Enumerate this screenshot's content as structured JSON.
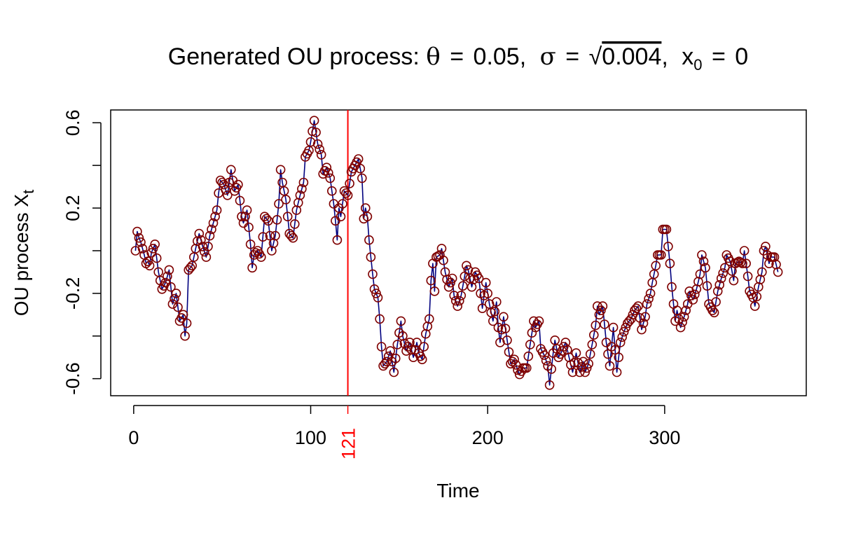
{
  "chart_data": {
    "type": "line",
    "title": {
      "prefix": "Generated OU process: ",
      "theta_symbol": "θ",
      "theta_value": "0.05",
      "sigma_symbol": "σ",
      "sigma_radical": "√",
      "sigma_value": "0.004",
      "x0_symbol": "x",
      "x0_subscript": "0",
      "x0_value": "0",
      "equals": "=",
      "comma": ","
    },
    "xlabel": "Time",
    "ylabel": {
      "text": "OU process X",
      "subscript": "t"
    },
    "xlim": [
      -13,
      380
    ],
    "ylim": [
      -0.68,
      0.66
    ],
    "x_ticks": [
      0,
      100,
      200,
      300
    ],
    "x_tick_labels": [
      "0",
      "100",
      "200",
      "300"
    ],
    "y_ticks": [
      -0.6,
      -0.4,
      -0.2,
      0.0,
      0.2,
      0.4,
      0.6
    ],
    "y_tick_labels": [
      "-0.6",
      "-0.2",
      "0.2",
      "0.6"
    ],
    "y_labeled_ticks": [
      -0.6,
      -0.2,
      0.2,
      0.6
    ],
    "reference_line": {
      "x": 121,
      "label": "121",
      "color": "#ff0000"
    },
    "line_color": "#00007f",
    "point_color": "#7f0000",
    "series": [
      {
        "anchors": [
          [
            1,
            0.0
          ],
          [
            2,
            0.09
          ],
          [
            3,
            0.06
          ],
          [
            4,
            0.04
          ],
          [
            5,
            0.01
          ],
          [
            6,
            -0.02
          ],
          [
            7,
            -0.06
          ],
          [
            8,
            -0.05
          ],
          [
            9,
            -0.07
          ],
          [
            10,
            -0.01
          ],
          [
            12,
            0.03
          ],
          [
            14,
            -0.1
          ],
          [
            16,
            -0.18
          ],
          [
            18,
            -0.15
          ],
          [
            20,
            -0.09
          ],
          [
            22,
            -0.25
          ],
          [
            24,
            -0.2
          ],
          [
            26,
            -0.33
          ],
          [
            28,
            -0.3
          ],
          [
            29,
            -0.4
          ],
          [
            30,
            -0.34
          ],
          [
            31,
            -0.09
          ],
          [
            33,
            -0.07
          ],
          [
            35,
            0.01
          ],
          [
            37,
            0.08
          ],
          [
            39,
            0.02
          ],
          [
            41,
            -0.03
          ],
          [
            43,
            0.07
          ],
          [
            45,
            0.13
          ],
          [
            47,
            0.19
          ],
          [
            48,
            0.27
          ],
          [
            49,
            0.33
          ],
          [
            51,
            0.31
          ],
          [
            53,
            0.26
          ],
          [
            55,
            0.38
          ],
          [
            57,
            0.28
          ],
          [
            59,
            0.31
          ],
          [
            61,
            0.16
          ],
          [
            62,
            0.13
          ],
          [
            64,
            0.19
          ],
          [
            65,
            0.11
          ],
          [
            66,
            0.03
          ],
          [
            67,
            -0.08
          ],
          [
            68,
            -0.02
          ],
          [
            70,
            0.0
          ],
          [
            72,
            -0.03
          ],
          [
            74,
            0.16
          ],
          [
            76,
            0.14
          ],
          [
            78,
            0.0
          ],
          [
            80,
            0.07
          ],
          [
            82,
            0.22
          ],
          [
            83,
            0.38
          ],
          [
            84,
            0.32
          ],
          [
            86,
            0.24
          ],
          [
            88,
            0.08
          ],
          [
            90,
            0.06
          ],
          [
            92,
            0.19
          ],
          [
            94,
            0.26
          ],
          [
            96,
            0.32
          ],
          [
            97,
            0.44
          ],
          [
            99,
            0.47
          ],
          [
            100,
            0.51
          ],
          [
            102,
            0.61
          ],
          [
            104,
            0.5
          ],
          [
            106,
            0.45
          ],
          [
            107,
            0.36
          ],
          [
            109,
            0.39
          ],
          [
            111,
            0.34
          ],
          [
            113,
            0.22
          ],
          [
            114,
            0.14
          ],
          [
            115,
            0.05
          ],
          [
            116,
            0.2
          ],
          [
            117,
            0.16
          ],
          [
            119,
            0.28
          ],
          [
            121,
            0.26
          ],
          [
            123,
            0.37
          ],
          [
            125,
            0.4
          ],
          [
            127,
            0.43
          ],
          [
            129,
            0.34
          ],
          [
            130,
            0.15
          ],
          [
            131,
            0.2
          ],
          [
            132,
            0.16
          ],
          [
            133,
            0.05
          ],
          [
            134,
            -0.03
          ],
          [
            135,
            -0.11
          ],
          [
            136,
            -0.18
          ],
          [
            138,
            -0.22
          ],
          [
            139,
            -0.32
          ],
          [
            140,
            -0.45
          ],
          [
            141,
            -0.54
          ],
          [
            143,
            -0.52
          ],
          [
            145,
            -0.47
          ],
          [
            147,
            -0.57
          ],
          [
            149,
            -0.44
          ],
          [
            151,
            -0.33
          ],
          [
            152,
            -0.4
          ],
          [
            154,
            -0.47
          ],
          [
            156,
            -0.43
          ],
          [
            158,
            -0.5
          ],
          [
            160,
            -0.43
          ],
          [
            161,
            -0.48
          ],
          [
            163,
            -0.51
          ],
          [
            165,
            -0.39
          ],
          [
            167,
            -0.32
          ],
          [
            168,
            -0.14
          ],
          [
            169,
            -0.06
          ],
          [
            170,
            -0.19
          ],
          [
            171,
            -0.03
          ],
          [
            173,
            -0.02
          ],
          [
            174,
            0.01
          ],
          [
            176,
            -0.1
          ],
          [
            178,
            -0.17
          ],
          [
            180,
            -0.13
          ],
          [
            181,
            -0.21
          ],
          [
            183,
            -0.26
          ],
          [
            185,
            -0.21
          ],
          [
            187,
            -0.12
          ],
          [
            188,
            -0.07
          ],
          [
            189,
            -0.09
          ],
          [
            191,
            -0.17
          ],
          [
            193,
            -0.1
          ],
          [
            195,
            -0.13
          ],
          [
            196,
            -0.2
          ],
          [
            197,
            -0.27
          ],
          [
            199,
            -0.15
          ],
          [
            201,
            -0.25
          ],
          [
            203,
            -0.33
          ],
          [
            205,
            -0.24
          ],
          [
            206,
            -0.36
          ],
          [
            207,
            -0.43
          ],
          [
            209,
            -0.31
          ],
          [
            211,
            -0.42
          ],
          [
            213,
            -0.53
          ],
          [
            215,
            -0.51
          ],
          [
            217,
            -0.56
          ],
          [
            218,
            -0.58
          ],
          [
            220,
            -0.55
          ],
          [
            222,
            -0.55
          ],
          [
            224,
            -0.44
          ],
          [
            226,
            -0.33
          ],
          [
            227,
            -0.36
          ],
          [
            229,
            -0.33
          ],
          [
            230,
            -0.46
          ],
          [
            232,
            -0.49
          ],
          [
            234,
            -0.54
          ],
          [
            235,
            -0.63
          ],
          [
            237,
            -0.48
          ],
          [
            238,
            -0.42
          ],
          [
            240,
            -0.5
          ],
          [
            242,
            -0.47
          ],
          [
            244,
            -0.43
          ],
          [
            246,
            -0.5
          ],
          [
            248,
            -0.57
          ],
          [
            250,
            -0.48
          ],
          [
            252,
            -0.57
          ],
          [
            254,
            -0.52
          ],
          [
            255,
            -0.57
          ],
          [
            257,
            -0.53
          ],
          [
            259,
            -0.44
          ],
          [
            261,
            -0.35
          ],
          [
            262,
            -0.26
          ],
          [
            263,
            -0.3
          ],
          [
            265,
            -0.26
          ],
          [
            267,
            -0.43
          ],
          [
            269,
            -0.54
          ],
          [
            271,
            -0.36
          ],
          [
            273,
            -0.57
          ],
          [
            275,
            -0.43
          ],
          [
            277,
            -0.38
          ],
          [
            279,
            -0.34
          ],
          [
            281,
            -0.32
          ],
          [
            283,
            -0.28
          ],
          [
            285,
            -0.26
          ],
          [
            287,
            -0.37
          ],
          [
            289,
            -0.31
          ],
          [
            290,
            -0.25
          ],
          [
            292,
            -0.2
          ],
          [
            293,
            -0.15
          ],
          [
            295,
            -0.07
          ],
          [
            296,
            -0.02
          ],
          [
            298,
            -0.02
          ],
          [
            299,
            0.1
          ],
          [
            301,
            0.1
          ],
          [
            303,
            -0.06
          ],
          [
            304,
            -0.17
          ],
          [
            306,
            -0.33
          ],
          [
            307,
            -0.28
          ],
          [
            309,
            -0.36
          ],
          [
            311,
            -0.31
          ],
          [
            313,
            -0.25
          ],
          [
            314,
            -0.19
          ],
          [
            316,
            -0.23
          ],
          [
            318,
            -0.18
          ],
          [
            320,
            -0.11
          ],
          [
            321,
            -0.02
          ],
          [
            323,
            -0.08
          ],
          [
            325,
            -0.25
          ],
          [
            327,
            -0.28
          ],
          [
            328,
            -0.29
          ],
          [
            330,
            -0.19
          ],
          [
            332,
            -0.13
          ],
          [
            334,
            -0.08
          ],
          [
            335,
            -0.02
          ],
          [
            337,
            -0.05
          ],
          [
            339,
            -0.14
          ],
          [
            340,
            -0.06
          ],
          [
            342,
            -0.05
          ],
          [
            344,
            -0.06
          ],
          [
            345,
            0.0
          ],
          [
            347,
            -0.12
          ],
          [
            348,
            -0.19
          ],
          [
            350,
            -0.22
          ],
          [
            351,
            -0.26
          ],
          [
            353,
            -0.17
          ],
          [
            355,
            -0.1
          ],
          [
            356,
            0.0
          ],
          [
            357,
            0.02
          ],
          [
            359,
            -0.06
          ],
          [
            360,
            -0.03
          ],
          [
            362,
            -0.03
          ],
          [
            364,
            -0.1
          ]
        ]
      }
    ]
  }
}
